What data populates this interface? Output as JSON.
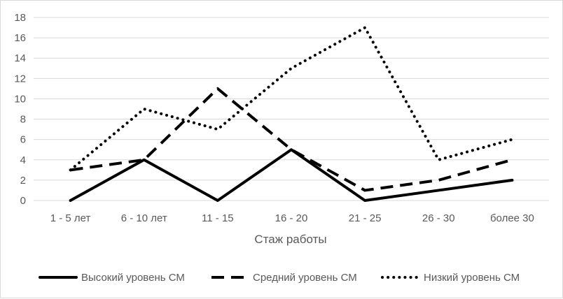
{
  "chart_data": {
    "type": "line",
    "categories": [
      "1 - 5 лет",
      "6 - 10 лет",
      "11 - 15",
      "16 - 20",
      "21 - 25",
      "26 - 30",
      "более 30"
    ],
    "series": [
      {
        "name": "Высокий уровень СМ",
        "values": [
          0,
          4,
          0,
          5,
          0,
          1,
          2
        ],
        "style": "solid",
        "color": "#000000"
      },
      {
        "name": "Средний уровень СМ",
        "values": [
          3,
          4,
          11,
          5,
          1,
          2,
          4
        ],
        "style": "dashed",
        "color": "#000000"
      },
      {
        "name": "Низкий уровень СМ",
        "values": [
          3,
          9,
          7,
          13,
          17,
          4,
          6
        ],
        "style": "dotted",
        "color": "#000000"
      }
    ],
    "xlabel": "Стаж работы",
    "ylabel": "",
    "ylim": [
      0,
      18
    ],
    "yticks": [
      "0",
      "2",
      "4",
      "6",
      "8",
      "10",
      "12",
      "14",
      "16",
      "18"
    ],
    "grid": true,
    "legend_position": "bottom"
  }
}
